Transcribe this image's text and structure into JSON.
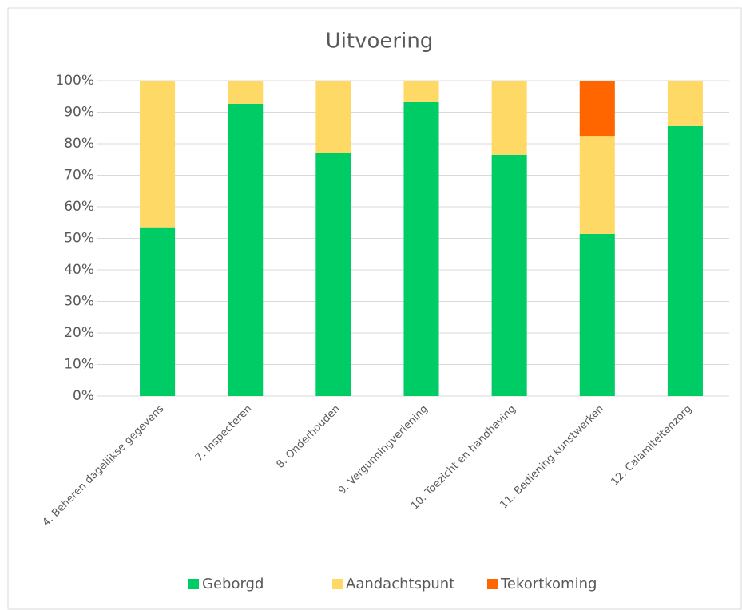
{
  "chart_data": {
    "type": "stacked_bar",
    "title": "Uitvoering",
    "categories": [
      "4. Beheren dagelijkse gegevens",
      "7. Inspecteren",
      "8. Onderhouden",
      "9. Vergunningverlening",
      "10. Toezicht en handhaving",
      "11. Bediening kunstwerken",
      "12. Calamiteitenzorg"
    ],
    "series": [
      {
        "name": "Geborgd",
        "color": "#00cc66",
        "values": [
          53.5,
          92.7,
          77,
          93.2,
          76.5,
          51.4,
          85.6
        ]
      },
      {
        "name": "Aandachtspunt",
        "color": "#ffd966",
        "values": [
          46.5,
          7.3,
          23,
          6.8,
          23.5,
          31.1,
          14.4
        ]
      },
      {
        "name": "Tekortkoming",
        "color": "#ff6600",
        "values": [
          0,
          0,
          0,
          0,
          0,
          17.5,
          0
        ]
      }
    ],
    "ylim": [
      0,
      100
    ],
    "yticks": [
      {
        "value": 0,
        "label": "0%"
      },
      {
        "value": 10,
        "label": "10%"
      },
      {
        "value": 20,
        "label": "20%"
      },
      {
        "value": 30,
        "label": "30%"
      },
      {
        "value": 40,
        "label": "40%"
      },
      {
        "value": 50,
        "label": "50%"
      },
      {
        "value": 60,
        "label": "60%"
      },
      {
        "value": 70,
        "label": "70%"
      },
      {
        "value": 80,
        "label": "80%"
      },
      {
        "value": 90,
        "label": "90%"
      },
      {
        "value": 100,
        "label": "100%"
      }
    ],
    "grid": true,
    "legend": "bottom"
  }
}
